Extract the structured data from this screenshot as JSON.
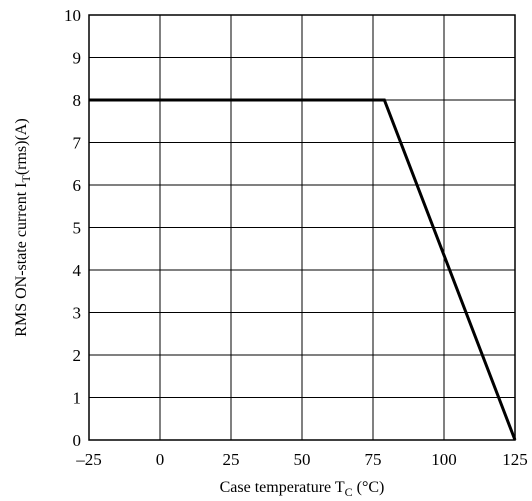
{
  "chart_data": {
    "type": "line",
    "xlabel_main": "Case temperature T",
    "xlabel_sub": "C",
    "xlabel_unit": " (°C)",
    "ylabel_main": "RMS ON-state current I",
    "ylabel_sub": "T",
    "ylabel_unit": "(rms)(A)",
    "xlim": [
      -25,
      125
    ],
    "ylim": [
      0,
      10
    ],
    "x_ticks": [
      -25,
      0,
      25,
      50,
      75,
      100,
      125
    ],
    "x_tick_labels": [
      "–25",
      "0",
      "25",
      "50",
      "75",
      "100",
      "125"
    ],
    "y_ticks": [
      0,
      1,
      2,
      3,
      4,
      5,
      6,
      7,
      8,
      9,
      10
    ],
    "y_tick_labels": [
      "0",
      "1",
      "2",
      "3",
      "4",
      "5",
      "6",
      "7",
      "8",
      "9",
      "10"
    ],
    "grid": true,
    "series": [
      {
        "x": [
          -25,
          79,
          125
        ],
        "y": [
          8,
          8,
          0
        ]
      }
    ]
  }
}
